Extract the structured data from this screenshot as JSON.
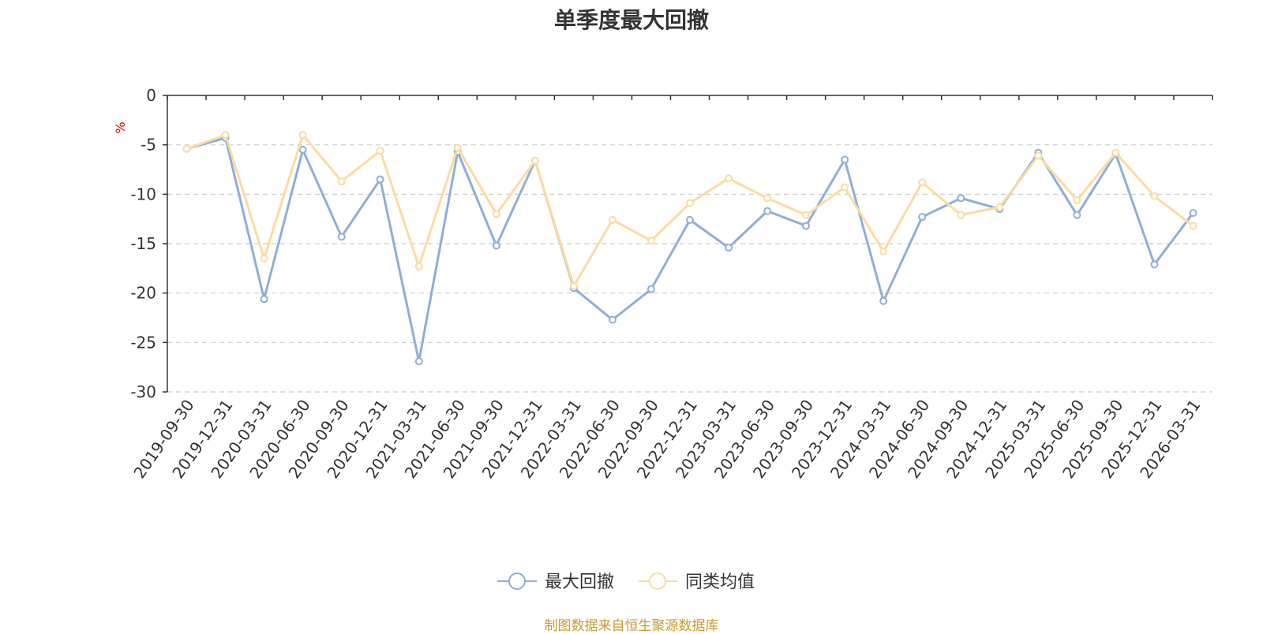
{
  "chart_data": {
    "type": "line",
    "title": "单季度最大回撤",
    "ylabel": "%",
    "ylim": [
      -30,
      0
    ],
    "yticks": [
      0,
      -5,
      -10,
      -15,
      -20,
      -25,
      -30
    ],
    "grid": true,
    "legend_position": "bottom",
    "categories": [
      "2019-09-30",
      "2019-12-31",
      "2020-03-31",
      "2020-06-30",
      "2020-09-30",
      "2020-12-31",
      "2021-03-31",
      "2021-06-30",
      "2021-09-30",
      "2021-12-31",
      "2022-03-31",
      "2022-06-30",
      "2022-09-30",
      "2022-12-31",
      "2023-03-31",
      "2023-06-30",
      "2023-09-30",
      "2023-12-31",
      "2024-03-31",
      "2024-06-30",
      "2024-09-30",
      "2024-12-31",
      "2025-03-31",
      "2025-06-30",
      "2025-09-30",
      "2025-12-31",
      "2026-03-31"
    ],
    "series": [
      {
        "name": "最大回撤",
        "color": "#8eaed9",
        "values": [
          -5.4,
          -4.3,
          -20.6,
          -5.5,
          -14.3,
          -8.5,
          -26.9,
          -5.7,
          -15.2,
          -6.6,
          -19.5,
          -22.7,
          -19.6,
          -12.6,
          -15.4,
          -11.7,
          -13.2,
          -6.5,
          -20.8,
          -12.3,
          -10.4,
          -11.5,
          -5.8,
          -12.1,
          -5.9,
          -17.1,
          -11.9
        ]
      },
      {
        "name": "同类均值",
        "color": "#fcdba0",
        "values": [
          -5.4,
          -4.0,
          -16.5,
          -4.0,
          -8.7,
          -5.6,
          -17.3,
          -5.3,
          -12.0,
          -6.6,
          -19.3,
          -12.6,
          -14.7,
          -10.9,
          -8.4,
          -10.4,
          -12.1,
          -9.3,
          -15.8,
          -8.8,
          -12.1,
          -11.3,
          -6.1,
          -10.6,
          -5.8,
          -10.2,
          -13.2
        ]
      }
    ]
  },
  "footer": {
    "source_text": "制图数据来自恒生聚源数据库"
  },
  "colors": {
    "axis": "#333333",
    "grid": "#cccccc",
    "ylabel": "#e00000",
    "source": "#c99a2e"
  }
}
